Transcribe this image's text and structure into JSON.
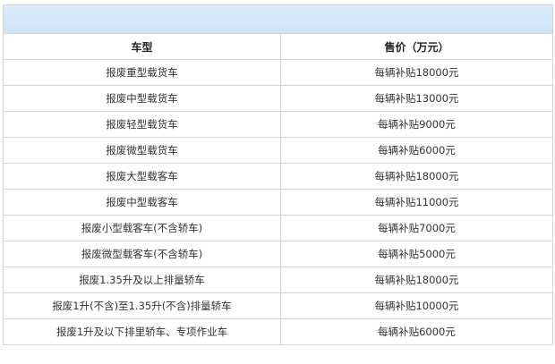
{
  "header_band_color": "#d6e7f8",
  "columns": [
    "车型",
    "售价（万元）"
  ],
  "rows": [
    [
      "报废重型载货车",
      "每辆补贴18000元"
    ],
    [
      "报废中型载货车",
      "每辆补贴13000元"
    ],
    [
      "报废轻型载货车",
      "每辆补贴9000元"
    ],
    [
      "报废微型载货车",
      "每辆补贴6000元"
    ],
    [
      "报废大型载客车",
      "每辆补贴18000元"
    ],
    [
      "报废中型载客车",
      "每辆补贴11000元"
    ],
    [
      "报废小型载客车(不含轿车)",
      "每辆补贴7000元"
    ],
    [
      "报废微型载客车(不含轿车)",
      "每辆补贴5000元"
    ],
    [
      "报废1.35升及以上排量轿车",
      "每辆补贴18000元"
    ],
    [
      "报废1升(不含)至1.35升(不含)排量轿车",
      "每辆补贴10000元"
    ],
    [
      "报废1升及以下排里轿车、专项作业车",
      "每辆补贴6000元"
    ]
  ]
}
